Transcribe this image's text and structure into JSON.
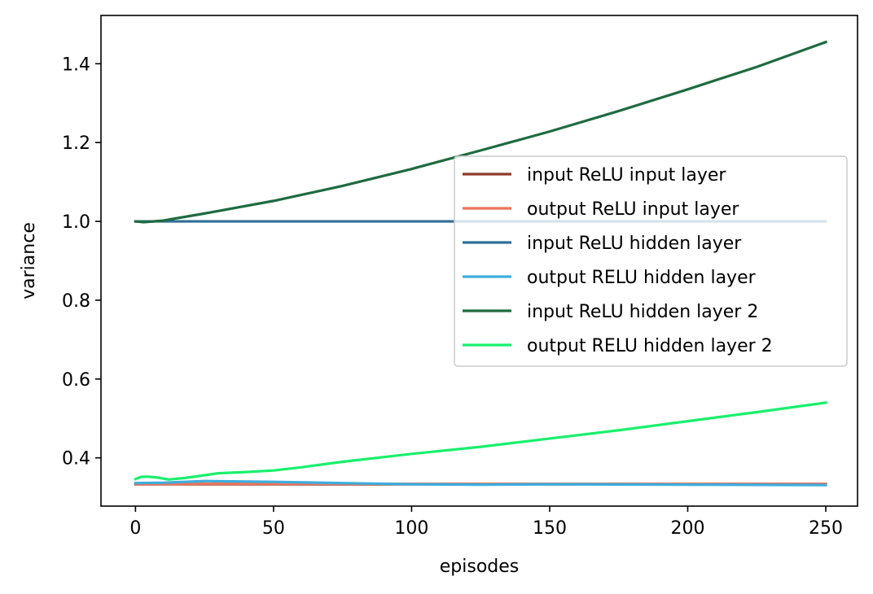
{
  "chart_data": {
    "type": "line",
    "title": "",
    "xlabel": "episodes",
    "ylabel": "variance",
    "xlim": [
      -12.5,
      261.5
    ],
    "ylim": [
      0.2775,
      1.5225
    ],
    "xticks": [
      0,
      50,
      100,
      150,
      200,
      250
    ],
    "xtick_labels": [
      "0",
      "50",
      "100",
      "150",
      "200",
      "250"
    ],
    "yticks": [
      0.4,
      0.6,
      0.8,
      1.0,
      1.2,
      1.4
    ],
    "ytick_labels": [
      "0.4",
      "0.6",
      "0.8",
      "1.0",
      "1.2",
      "1.4"
    ],
    "grid": false,
    "legend_position": "center-right",
    "series": [
      {
        "name": "input ReLU input layer",
        "color": "#8b3a2a",
        "x": [
          0,
          250
        ],
        "y": [
          0.333,
          0.333
        ]
      },
      {
        "name": "output ReLU input layer",
        "color": "#e9765a",
        "x": [
          0,
          25,
          50,
          100,
          150,
          200,
          250
        ],
        "y": [
          0.333,
          0.334,
          0.334,
          0.334,
          0.334,
          0.334,
          0.334
        ]
      },
      {
        "name": "input ReLU hidden layer",
        "color": "#2f6f95",
        "x": [
          0,
          50,
          100,
          150,
          200,
          250
        ],
        "y": [
          1.0,
          1.0,
          1.0,
          1.0,
          1.0,
          1.0
        ]
      },
      {
        "name": "output RELU hidden layer",
        "color": "#3daee0",
        "x": [
          0,
          10,
          25,
          50,
          75,
          100,
          125,
          150,
          200,
          250
        ],
        "y": [
          0.336,
          0.337,
          0.341,
          0.339,
          0.336,
          0.333,
          0.332,
          0.333,
          0.332,
          0.331
        ]
      },
      {
        "name": "input ReLU hidden layer 2",
        "color": "#1e6b40",
        "x": [
          0,
          3,
          10,
          25,
          50,
          75,
          100,
          125,
          150,
          175,
          200,
          225,
          250
        ],
        "y": [
          1.0,
          0.998,
          1.002,
          1.02,
          1.052,
          1.09,
          1.133,
          1.18,
          1.228,
          1.28,
          1.335,
          1.392,
          1.455
        ]
      },
      {
        "name": "output RELU hidden layer 2",
        "color": "#19f06c",
        "x": [
          0,
          2,
          5,
          8,
          12,
          18,
          25,
          30,
          40,
          50,
          60,
          75,
          100,
          125,
          150,
          175,
          200,
          225,
          250
        ],
        "y": [
          0.346,
          0.352,
          0.352,
          0.35,
          0.345,
          0.349,
          0.356,
          0.361,
          0.364,
          0.368,
          0.376,
          0.39,
          0.41,
          0.428,
          0.449,
          0.47,
          0.493,
          0.516,
          0.54
        ]
      }
    ]
  }
}
